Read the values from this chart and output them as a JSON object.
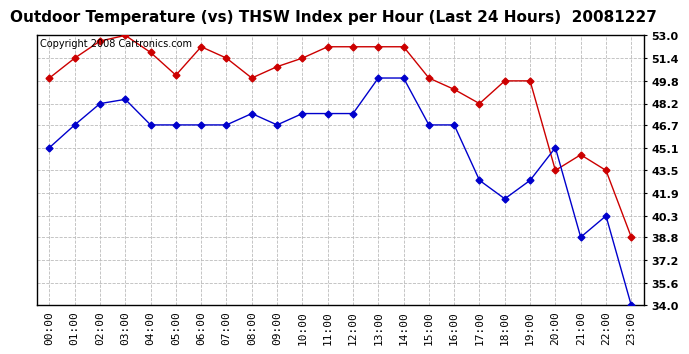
{
  "title": "Outdoor Temperature (vs) THSW Index per Hour (Last 24 Hours)  20081227",
  "copyright": "Copyright 2008 Cartronics.com",
  "hours": [
    "00:00",
    "01:00",
    "02:00",
    "03:00",
    "04:00",
    "05:00",
    "06:00",
    "07:00",
    "08:00",
    "09:00",
    "10:00",
    "11:00",
    "12:00",
    "13:00",
    "14:00",
    "15:00",
    "16:00",
    "17:00",
    "18:00",
    "19:00",
    "20:00",
    "21:00",
    "22:00",
    "23:00"
  ],
  "red_data": [
    50.0,
    51.4,
    52.6,
    53.0,
    51.8,
    50.2,
    52.2,
    51.4,
    50.0,
    50.8,
    51.4,
    52.2,
    52.2,
    52.2,
    52.2,
    50.0,
    49.2,
    48.2,
    49.8,
    49.8,
    43.5,
    44.6,
    43.5,
    38.8
  ],
  "blue_data": [
    45.1,
    46.7,
    48.2,
    48.5,
    46.7,
    46.7,
    46.7,
    46.7,
    47.5,
    46.7,
    47.5,
    47.5,
    47.5,
    50.0,
    50.0,
    46.7,
    46.7,
    42.8,
    41.5,
    42.8,
    45.1,
    38.8,
    40.3,
    34.0
  ],
  "ylim_min": 34.0,
  "ylim_max": 53.0,
  "yticks": [
    34.0,
    35.6,
    37.2,
    38.8,
    40.3,
    41.9,
    43.5,
    45.1,
    46.7,
    48.2,
    49.8,
    51.4,
    53.0
  ],
  "red_color": "#cc0000",
  "blue_color": "#0000cc",
  "bg_color": "#ffffff",
  "grid_color": "#bbbbbb",
  "title_fontsize": 11,
  "axis_fontsize": 8,
  "copyright_fontsize": 7
}
